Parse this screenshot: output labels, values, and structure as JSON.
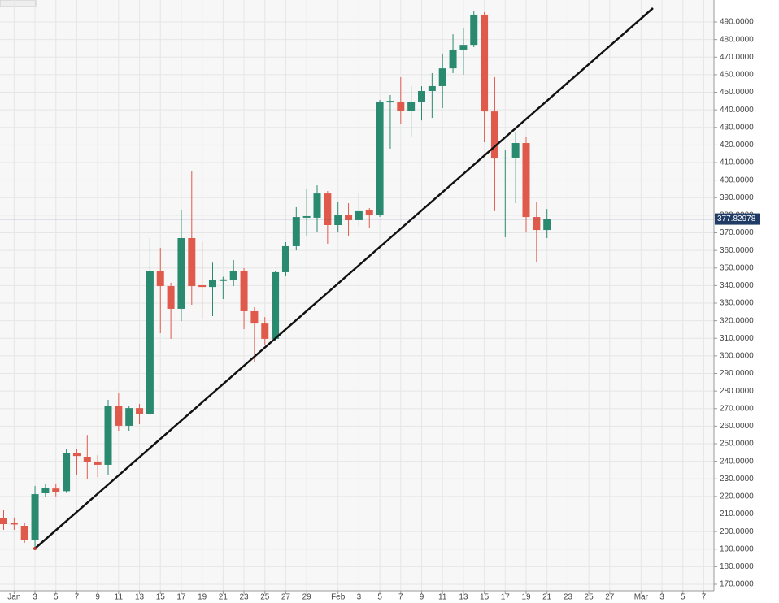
{
  "chart_data": {
    "type": "candlestick",
    "categories": [
      null,
      "Jan",
      null,
      "3",
      null,
      "5",
      null,
      "7",
      null,
      "9",
      null,
      "11",
      null,
      "13",
      null,
      "15",
      null,
      "17",
      null,
      "19",
      null,
      "21",
      null,
      "23",
      null,
      "25",
      null,
      "27",
      null,
      "29",
      null,
      null,
      "Feb",
      null,
      "3",
      null,
      "5",
      null,
      "7",
      null,
      "9",
      null,
      "11",
      null,
      "13",
      null,
      "15",
      null,
      "17",
      null,
      "19",
      null,
      "21",
      null,
      "23",
      null,
      "25",
      null,
      "27",
      null,
      null,
      "Mar",
      null,
      "3",
      null,
      "5",
      null,
      "7"
    ],
    "open": [
      207.5,
      205,
      203.3,
      195,
      221.8,
      224.5,
      223,
      244.5,
      242.6,
      239.8,
      238,
      271.3,
      260.2,
      270.3,
      267,
      348.5,
      339.7,
      326.8,
      367,
      340.2,
      339.2,
      342.6,
      343,
      348.5,
      325.4,
      318.4,
      309.7,
      347.6,
      362.4,
      378.6,
      378.6,
      392.4,
      374.4,
      380,
      377.2,
      383.2,
      380.4,
      444.2,
      444.7,
      439.6,
      444.7,
      450.7,
      453.5,
      463.6,
      474.3,
      477,
      494.2,
      439.1,
      412.3,
      412.8,
      421.1,
      379,
      371.6,
      null,
      null,
      null,
      null,
      null,
      null,
      null,
      null,
      null,
      null,
      null,
      null,
      null,
      null,
      null
    ],
    "high": [
      212.5,
      208,
      205,
      226,
      227,
      227,
      247,
      247,
      255,
      243.5,
      275,
      278.7,
      271.3,
      272.7,
      367,
      361.4,
      341.6,
      383.2,
      404.9,
      365,
      353,
      345,
      354.5,
      349.9,
      327.7,
      322.1,
      348.5,
      364.7,
      384.6,
      395.2,
      397,
      393.8,
      387.8,
      386.9,
      392.4,
      384.1,
      445.6,
      448.4,
      458.6,
      453.5,
      453.5,
      460.9,
      472,
      483,
      486.3,
      496.5,
      495.6,
      458.6,
      417,
      427.6,
      424.8,
      387.8,
      383.6,
      null,
      null,
      null,
      null,
      null,
      null,
      null,
      null,
      null,
      null,
      null,
      null,
      null,
      null,
      null
    ],
    "low": [
      201,
      201,
      193.6,
      190.3,
      219.5,
      220,
      222,
      232,
      229.7,
      231,
      232,
      257.4,
      257.4,
      261.1,
      266.2,
      312.9,
      309.7,
      319.8,
      329,
      321.2,
      322.6,
      332.3,
      339.7,
      315.2,
      296.7,
      306,
      308.3,
      345.3,
      360,
      368.4,
      370.7,
      363.8,
      370.2,
      368.4,
      373.9,
      373,
      379,
      417.9,
      432.2,
      424.8,
      434,
      435.4,
      441,
      460.9,
      460,
      475.7,
      421.6,
      382.3,
      367.5,
      386.9,
      370.2,
      353.1,
      367,
      null,
      null,
      null,
      null,
      null,
      null,
      null,
      null,
      null,
      null,
      null,
      null,
      null,
      null,
      null
    ],
    "close": [
      204.2,
      204,
      195,
      221.3,
      224.6,
      222.5,
      244.5,
      243,
      239.8,
      238,
      271.3,
      260.2,
      270.3,
      267,
      348.5,
      339.7,
      326.8,
      367,
      339.7,
      339.2,
      343,
      343.5,
      348.5,
      325.4,
      318.4,
      309.7,
      347.6,
      362.4,
      379,
      379.5,
      392.4,
      374.4,
      380,
      377.2,
      382.3,
      380.4,
      444.7,
      445.1,
      439.6,
      444.7,
      450.7,
      453.5,
      463.6,
      474.3,
      477,
      494.2,
      439.1,
      412.3,
      412.8,
      421.1,
      379,
      371.6,
      377.8,
      null,
      null,
      null,
      null,
      null,
      null,
      null,
      null,
      null,
      null,
      null,
      null,
      null,
      null,
      null
    ],
    "up_color": "#2a8a70",
    "down_color": "#e05a4b",
    "last_price": 377.82978,
    "ylim": [
      166.3,
      498.8
    ],
    "yticks": [
      {
        "value": 170,
        "label": "170.0000"
      },
      {
        "value": 180,
        "label": "180.0000"
      },
      {
        "value": 190,
        "label": "190.0000"
      },
      {
        "value": 200,
        "label": "200.0000"
      },
      {
        "value": 210,
        "label": "210.0000"
      },
      {
        "value": 220,
        "label": "220.0000"
      },
      {
        "value": 230,
        "label": "230.0000"
      },
      {
        "value": 240,
        "label": "240.0000"
      },
      {
        "value": 250,
        "label": "250.0000"
      },
      {
        "value": 260,
        "label": "260.0000"
      },
      {
        "value": 270,
        "label": "270.0000"
      },
      {
        "value": 280,
        "label": "280.0000"
      },
      {
        "value": 290,
        "label": "290.0000"
      },
      {
        "value": 300,
        "label": "300.0000"
      },
      {
        "value": 310,
        "label": "310.0000"
      },
      {
        "value": 320,
        "label": "320.0000"
      },
      {
        "value": 330,
        "label": "330.0000"
      },
      {
        "value": 340,
        "label": "340.0000"
      },
      {
        "value": 350,
        "label": "350.0000"
      },
      {
        "value": 360,
        "label": "360.0000"
      },
      {
        "value": 370,
        "label": "370.0000"
      },
      {
        "value": 380,
        "label": "380.0000"
      },
      {
        "value": 390,
        "label": "390.0000"
      },
      {
        "value": 400,
        "label": "400.0000"
      },
      {
        "value": 410,
        "label": "410.0000"
      },
      {
        "value": 420,
        "label": "420.0000"
      },
      {
        "value": 430,
        "label": "430.0000"
      },
      {
        "value": 440,
        "label": "440.0000"
      },
      {
        "value": 450,
        "label": "450.0000"
      },
      {
        "value": 460,
        "label": "460.0000"
      },
      {
        "value": 470,
        "label": "470.0000"
      },
      {
        "value": 480,
        "label": "480.0000"
      },
      {
        "value": 490,
        "label": "490.0000"
      }
    ],
    "grid": true
  }
}
